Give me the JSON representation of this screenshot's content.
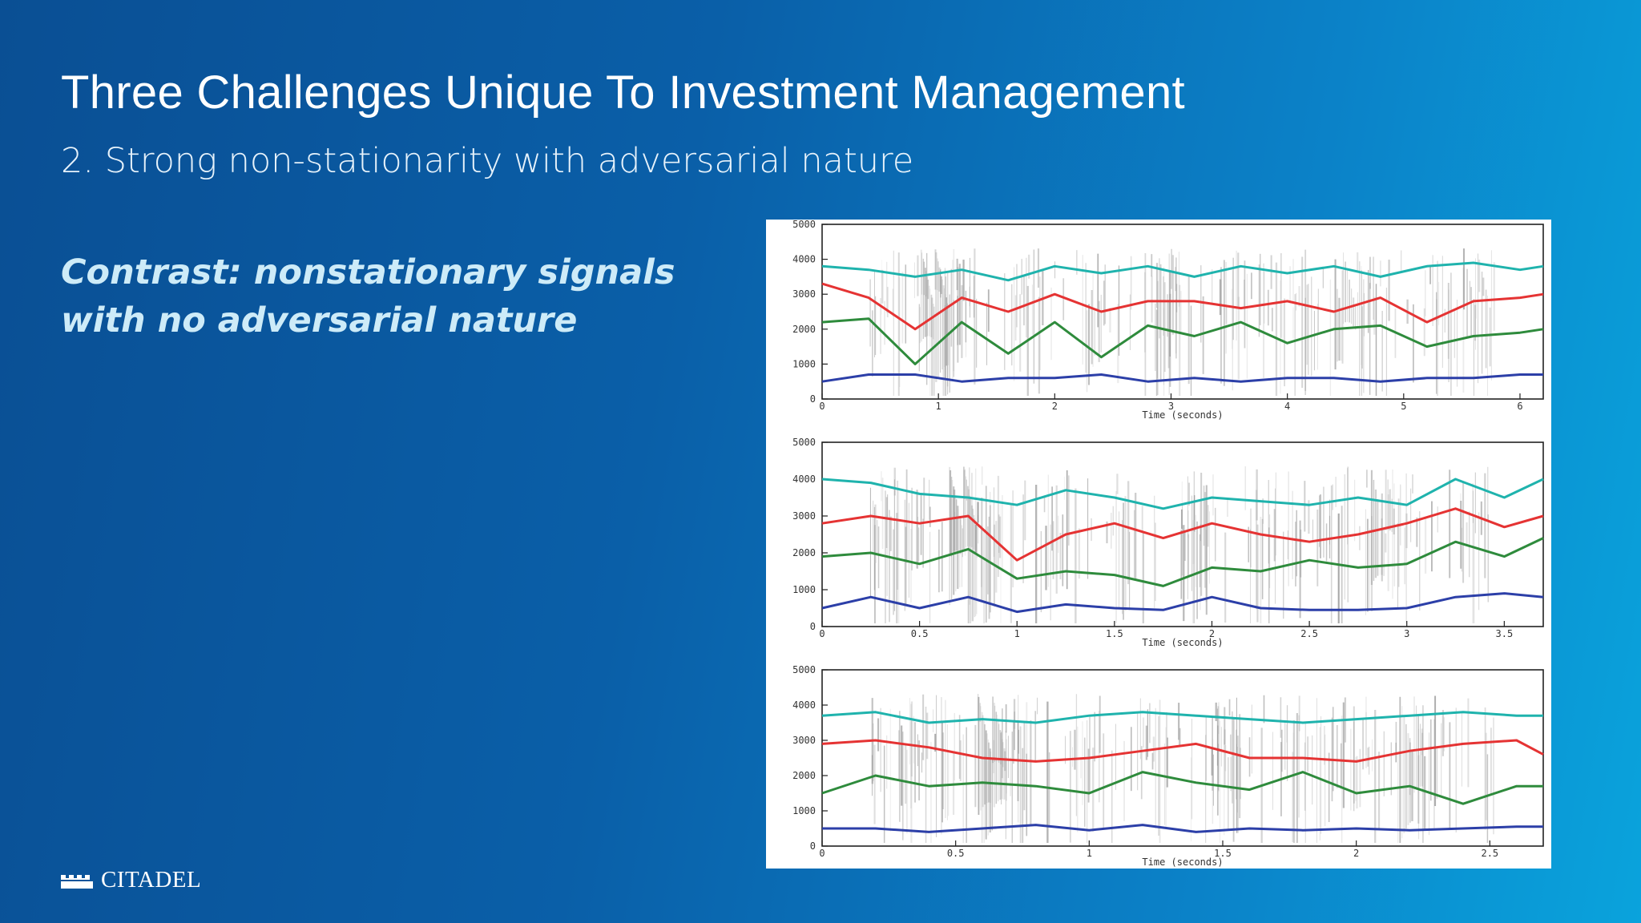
{
  "slide": {
    "title": "Three Challenges Unique To Investment Management",
    "subtitle": "2. Strong non-stationarity with adversarial nature",
    "contrast_lines": [
      "Contrast: nonstationary signals",
      "with no adversarial nature"
    ],
    "logo_text": "CITADEL"
  },
  "colors": {
    "background_start": "#0a4f94",
    "background_end": "#0aa3dc",
    "cyan": "#1fb3ad",
    "red": "#e53333",
    "green": "#2e8b3c",
    "blue": "#2c3fa8"
  },
  "chart_data": [
    {
      "type": "line",
      "xlabel": "Time (seconds)",
      "ylabel": "",
      "xlim": [
        0,
        6.2
      ],
      "ylim": [
        0,
        5000
      ],
      "xticks": [
        0,
        1,
        2,
        3,
        4,
        5,
        6
      ],
      "yticks": [
        0,
        1000,
        2000,
        3000,
        4000,
        5000
      ],
      "x": [
        0,
        0.4,
        0.8,
        1.2,
        1.6,
        2.0,
        2.4,
        2.8,
        3.2,
        3.6,
        4.0,
        4.4,
        4.8,
        5.2,
        5.6,
        6.0,
        6.2
      ],
      "series": [
        {
          "color": "#1fb3ad",
          "values": [
            3800,
            3700,
            3500,
            3700,
            3400,
            3800,
            3600,
            3800,
            3500,
            3800,
            3600,
            3800,
            3500,
            3800,
            3900,
            3700,
            3800
          ]
        },
        {
          "color": "#e53333",
          "values": [
            3300,
            2900,
            2000,
            2900,
            2500,
            3000,
            2500,
            2800,
            2800,
            2600,
            2800,
            2500,
            2900,
            2200,
            2800,
            2900,
            3000
          ]
        },
        {
          "color": "#2e8b3c",
          "values": [
            2200,
            2300,
            1000,
            2200,
            1300,
            2200,
            1200,
            2100,
            1800,
            2200,
            1600,
            2000,
            2100,
            1500,
            1800,
            1900,
            2000
          ]
        },
        {
          "color": "#2c3fa8",
          "values": [
            500,
            700,
            700,
            500,
            600,
            600,
            700,
            500,
            600,
            500,
            600,
            600,
            500,
            600,
            600,
            700,
            700
          ]
        }
      ]
    },
    {
      "type": "line",
      "xlabel": "Time (seconds)",
      "ylabel": "",
      "xlim": [
        0,
        3.7
      ],
      "ylim": [
        0,
        5000
      ],
      "xticks": [
        0,
        0.5,
        1,
        1.5,
        2,
        2.5,
        3,
        3.5
      ],
      "yticks": [
        0,
        1000,
        2000,
        3000,
        4000,
        5000
      ],
      "x": [
        0,
        0.25,
        0.5,
        0.75,
        1.0,
        1.25,
        1.5,
        1.75,
        2.0,
        2.25,
        2.5,
        2.75,
        3.0,
        3.25,
        3.5,
        3.7
      ],
      "series": [
        {
          "color": "#1fb3ad",
          "values": [
            4000,
            3900,
            3600,
            3500,
            3300,
            3700,
            3500,
            3200,
            3500,
            3400,
            3300,
            3500,
            3300,
            4000,
            3500,
            4000
          ]
        },
        {
          "color": "#e53333",
          "values": [
            2800,
            3000,
            2800,
            3000,
            1800,
            2500,
            2800,
            2400,
            2800,
            2500,
            2300,
            2500,
            2800,
            3200,
            2700,
            3000
          ]
        },
        {
          "color": "#2e8b3c",
          "values": [
            1900,
            2000,
            1700,
            2100,
            1300,
            1500,
            1400,
            1100,
            1600,
            1500,
            1800,
            1600,
            1700,
            2300,
            1900,
            2400
          ]
        },
        {
          "color": "#2c3fa8",
          "values": [
            500,
            800,
            500,
            800,
            400,
            600,
            500,
            450,
            800,
            500,
            450,
            450,
            500,
            800,
            900,
            800
          ]
        }
      ]
    },
    {
      "type": "line",
      "xlabel": "Time (seconds)",
      "ylabel": "",
      "xlim": [
        0,
        2.7
      ],
      "ylim": [
        0,
        5000
      ],
      "xticks": [
        0,
        0.5,
        1,
        1.5,
        2,
        2.5
      ],
      "yticks": [
        0,
        1000,
        2000,
        3000,
        4000,
        5000
      ],
      "x": [
        0,
        0.2,
        0.4,
        0.6,
        0.8,
        1.0,
        1.2,
        1.4,
        1.6,
        1.8,
        2.0,
        2.2,
        2.4,
        2.6,
        2.7
      ],
      "series": [
        {
          "color": "#1fb3ad",
          "values": [
            3700,
            3800,
            3500,
            3600,
            3500,
            3700,
            3800,
            3700,
            3600,
            3500,
            3600,
            3700,
            3800,
            3700,
            3700
          ]
        },
        {
          "color": "#e53333",
          "values": [
            2900,
            3000,
            2800,
            2500,
            2400,
            2500,
            2700,
            2900,
            2500,
            2500,
            2400,
            2700,
            2900,
            3000,
            2600
          ]
        },
        {
          "color": "#2e8b3c",
          "values": [
            1500,
            2000,
            1700,
            1800,
            1700,
            1500,
            2100,
            1800,
            1600,
            2100,
            1500,
            1700,
            1200,
            1700,
            1700
          ]
        },
        {
          "color": "#2c3fa8",
          "values": [
            500,
            500,
            400,
            500,
            600,
            450,
            600,
            400,
            500,
            450,
            500,
            450,
            500,
            550,
            550
          ]
        }
      ]
    }
  ]
}
